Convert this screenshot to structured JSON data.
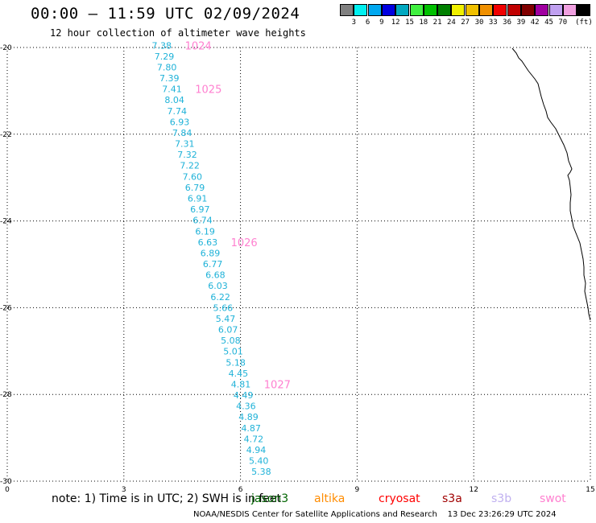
{
  "header": {
    "title": "00:00 – 11:59 UTC 02/09/2024",
    "subtitle": "12 hour collection of altimeter wave heights"
  },
  "colorbar": {
    "unit": "(ft)",
    "swatches": [
      {
        "color": "#808080",
        "label": ""
      },
      {
        "color": "#00f0f0",
        "label": "3"
      },
      {
        "color": "#00a8f0",
        "label": "6"
      },
      {
        "color": "#0000e0",
        "label": "9"
      },
      {
        "color": "#00a8c0",
        "label": "12"
      },
      {
        "color": "#40f040",
        "label": "15"
      },
      {
        "color": "#00c000",
        "label": "18"
      },
      {
        "color": "#008000",
        "label": "21"
      },
      {
        "color": "#f0f000",
        "label": "24"
      },
      {
        "color": "#f0c000",
        "label": "27"
      },
      {
        "color": "#f09000",
        "label": "30"
      },
      {
        "color": "#f00000",
        "label": "33"
      },
      {
        "color": "#c00000",
        "label": "36"
      },
      {
        "color": "#800000",
        "label": "39"
      },
      {
        "color": "#a000a0",
        "label": "42"
      },
      {
        "color": "#c0a0f0",
        "label": "45"
      },
      {
        "color": "#f0a0e0",
        "label": "70"
      },
      {
        "color": "#000000",
        "label": ""
      }
    ]
  },
  "map": {
    "lon_range": [
      0,
      15
    ],
    "lat_range": [
      -30,
      -20
    ],
    "x_ticks": [
      "0",
      "3",
      "6",
      "9",
      "12",
      "15"
    ],
    "y_ticks": [
      "-20",
      "-22",
      "-24",
      "-26",
      "-28",
      "-30"
    ],
    "swh_values": [
      "7.38",
      "7.29",
      "7.80",
      "7.39",
      "7.41",
      "8.04",
      "7.74",
      "6.93",
      "7.84",
      "7.31",
      "7.32",
      "7.22",
      "7.60",
      "6.79",
      "6.91",
      "6.97",
      "6.74",
      "6.19",
      "6.63",
      "6.89",
      "6.77",
      "6.68",
      "6.03",
      "6.22",
      "5.66",
      "5.47",
      "6.07",
      "5.08",
      "5.01",
      "5.18",
      "4.45",
      "4.81",
      "4.49",
      "4.36",
      "4.89",
      "4.87",
      "4.72",
      "4.94",
      "5.40",
      "5.38"
    ],
    "pass_times": [
      "1024",
      "1025",
      "1026",
      "1027"
    ],
    "swh_color": "#1fb2d8",
    "time_color": "#ff80d0"
  },
  "note": {
    "text": "note: 1) Time is in UTC; 2) SWH is in feet"
  },
  "satellites": [
    {
      "name": "jason3",
      "color": "#006400"
    },
    {
      "name": "altika",
      "color": "#ff8c00"
    },
    {
      "name": "cryosat",
      "color": "#ff0000"
    },
    {
      "name": "s3a",
      "color": "#a00000"
    },
    {
      "name": "s3b",
      "color": "#c0b0f0"
    },
    {
      "name": "swot",
      "color": "#ff80d0"
    }
  ],
  "footer": {
    "credit": "NOAA/NESDIS Center for Satellite Applications and Research",
    "timestamp": "13 Dec 23:26:29 UTC 2024"
  }
}
